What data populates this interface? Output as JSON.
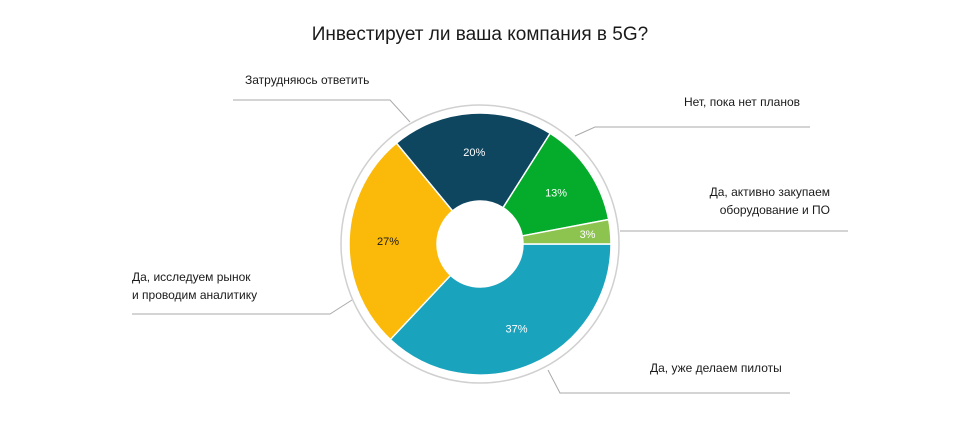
{
  "chart_data": {
    "type": "donut",
    "title": "Инвестирует ли ваша компания в 5G?",
    "categories": [
      [
        "Да, уже делаем пилоты"
      ],
      [
        "Да, исследуем рынок",
        "и проводим аналитику"
      ],
      [
        "Затрудняюсь ответить"
      ],
      [
        "Нет, пока нет планов"
      ],
      [
        "Да, активно закупаем",
        "оборудование и ПО"
      ]
    ],
    "values": [
      37,
      27,
      20,
      13,
      3
    ],
    "value_labels": [
      "37%",
      "27%",
      "20%",
      "13%",
      "3%"
    ],
    "colors": [
      "#1aa3bd",
      "#fbb90a",
      "#0e4660",
      "#05ab2a",
      "#8dc44f"
    ]
  }
}
